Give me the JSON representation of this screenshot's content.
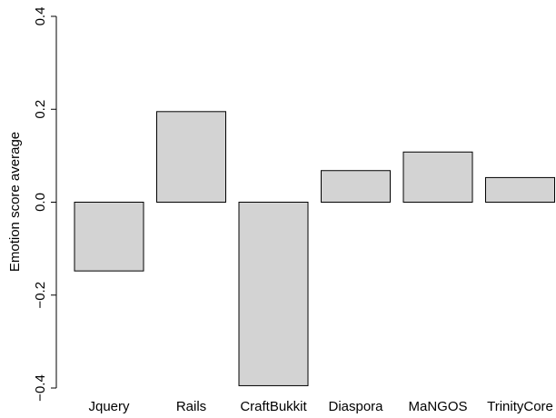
{
  "chart_data": {
    "type": "bar",
    "categories": [
      "Jquery",
      "Rails",
      "CraftBukkit",
      "Diaspora",
      "MaNGOS",
      "TrinityCore"
    ],
    "values": [
      -0.148,
      0.195,
      -0.395,
      0.068,
      0.108,
      0.053
    ],
    "title": "",
    "xlabel": "",
    "ylabel": "Emotion score average",
    "ylim": [
      -0.4,
      0.4
    ],
    "yticks": [
      "0.4",
      "0.2",
      "0.0",
      "−0.2",
      "−0.4"
    ],
    "grid": false,
    "legend": "none",
    "bar_color": "#d3d3d3",
    "bar_stroke": "#000000"
  }
}
